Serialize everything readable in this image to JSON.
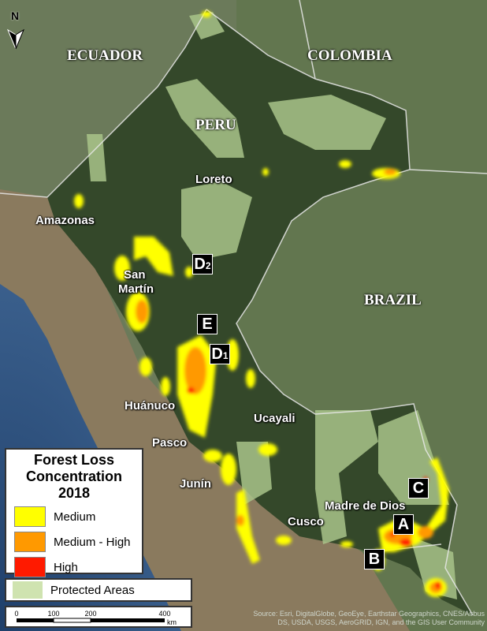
{
  "countries": {
    "ecuador": "ECUADOR",
    "colombia": "COLOMBIA",
    "peru": "PERU",
    "brazil": "BRAZIL"
  },
  "regions": {
    "loreto": "Loreto",
    "amazonas": "Amazonas",
    "san_martin_1": "San",
    "san_martin_2": "Martín",
    "huanuco": "Huánuco",
    "pasco": "Pasco",
    "ucayali": "Ucayali",
    "junin": "Junín",
    "cusco": "Cusco",
    "madre_de_dios": "Madre de Dios"
  },
  "markers": {
    "a": "A",
    "b": "B",
    "c": "C",
    "d1": "D",
    "d1_sub": "1",
    "d2": "D",
    "d2_sub": "2",
    "e": "E"
  },
  "north_arrow": "N",
  "legend": {
    "title_1": "Forest Loss",
    "title_2": "Concentration",
    "title_3": "2018",
    "items": [
      {
        "label": "Medium",
        "color": "#ffff00"
      },
      {
        "label": "Medium - High",
        "color": "#ff9900"
      },
      {
        "label": "High",
        "color": "#ff1a00"
      }
    ],
    "protected": {
      "label": "Protected Areas",
      "color": "#cfe3b0"
    }
  },
  "scale_bar": {
    "ticks": [
      "0",
      "100",
      "200",
      "400"
    ],
    "unit": "km"
  },
  "attribution": "Source: Esri, DigitalGlobe, GeoEye, Earthstar Geographics, CNES/Airbus DS, USDA, USGS, AeroGRID, IGN, and the GIS User Community"
}
